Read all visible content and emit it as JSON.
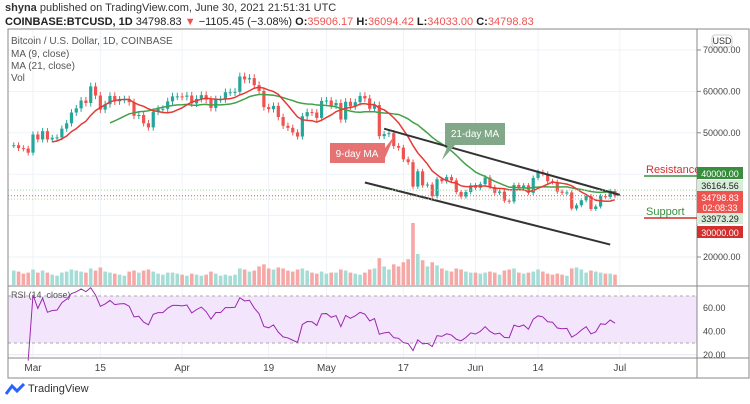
{
  "header": {
    "publisher": "shyna",
    "published_text": "published on TradingView.com, June 30, 2021 21:51:31 UTC",
    "symbol": "COINBASE:BTCUSD, 1D",
    "last": "34798.83",
    "change": "−1105.45 (−3.08%)",
    "o_label": "O:",
    "o": "35906.17",
    "h_label": "H:",
    "h": "36094.42",
    "l_label": "L:",
    "l": "34033.00",
    "c_label": "C:",
    "c": "34798.83"
  },
  "legend": {
    "title": "Bitcoin / U.S. Dollar, 1D, COINBASE",
    "ma9": "MA (9, close)",
    "ma21": "MA (21, close)",
    "vol": "Vol",
    "rsi": "RSI (14, close)"
  },
  "annotations": {
    "ma9_label": "9-day MA",
    "ma21_label": "21-day MA",
    "resistance": "Resistance",
    "support": "Support"
  },
  "price_axis": {
    "currency": "USD",
    "ticks": [
      "70000.00",
      "60000.00",
      "50000.00",
      "40000.00",
      "30000.00",
      "20000.00"
    ],
    "badge_resistance": "40000.00",
    "badge_high": "36164.56",
    "badge_last": "34798.83",
    "badge_countdown": "02:08:33",
    "badge_low": "33973.29",
    "badge_support": "30000.00"
  },
  "rsi_axis": {
    "ticks": [
      "60.00",
      "40.00",
      "20.00"
    ]
  },
  "time_axis": {
    "labels": [
      "Mar",
      "15",
      "Apr",
      "19",
      "May",
      "17",
      "Jun",
      "14",
      "Jul"
    ]
  },
  "branding": {
    "name": "TradingView"
  },
  "colors": {
    "up": "#26a69a",
    "down": "#ef5350",
    "ma9": "#e53935",
    "ma21": "#43a047",
    "rsi": "#9c27b0",
    "rsi_band": "#f3e5fc",
    "resistance_badge": "#388e3c",
    "support_badge": "#d32f2f"
  },
  "chart_data": {
    "type": "candlestick",
    "title": "Bitcoin / U.S. Dollar, 1D, COINBASE",
    "start_date": "2021-02-25",
    "end_date": "2021-06-30",
    "closes": [
      47000,
      46300,
      46200,
      45200,
      49600,
      48400,
      50400,
      48400,
      48800,
      48900,
      51000,
      52300,
      54900,
      55900,
      57800,
      57200,
      61200,
      59000,
      55600,
      56900,
      58900,
      57600,
      58000,
      58100,
      57400,
      54100,
      54300,
      52300,
      51300,
      55100,
      55800,
      55800,
      57600,
      58800,
      58800,
      58700,
      59000,
      57100,
      58200,
      59100,
      58000,
      56000,
      58100,
      58100,
      59800,
      59800,
      59900,
      63600,
      62900,
      63200,
      61500,
      60100,
      56200,
      55700,
      56500,
      53800,
      51700,
      51200,
      50100,
      49100,
      54000,
      55000,
      54900,
      53600,
      57700,
      57800,
      56600,
      57200,
      53200,
      57500,
      56400,
      57400,
      58900,
      58300,
      55800,
      56700,
      49200,
      49700,
      49900,
      46800,
      46400,
      43600,
      42900,
      37000,
      40700,
      37300,
      37500,
      34700,
      38800,
      38300,
      39300,
      38500,
      35700,
      34600,
      35700,
      37300,
      36700,
      37600,
      39200,
      36900,
      35500,
      35800,
      33600,
      33400,
      37400,
      36700,
      37300,
      35500,
      39100,
      40500,
      40100,
      38300,
      38100,
      35800,
      35500,
      35600,
      31700,
      32500,
      33700,
      34700,
      31600,
      32200,
      34700,
      34500,
      35900,
      34798.83
    ],
    "volumes": [
      14,
      13,
      11,
      12,
      15,
      12,
      14,
      12,
      10,
      9,
      12,
      13,
      15,
      14,
      13,
      12,
      16,
      14,
      17,
      13,
      12,
      11,
      10,
      9,
      13,
      14,
      12,
      14,
      15,
      13,
      11,
      10,
      12,
      12,
      11,
      10,
      9,
      11,
      10,
      9,
      10,
      13,
      11,
      9,
      10,
      9,
      10,
      16,
      15,
      13,
      14,
      18,
      20,
      16,
      15,
      17,
      16,
      14,
      13,
      15,
      16,
      14,
      12,
      11,
      13,
      11,
      12,
      12,
      15,
      14,
      12,
      11,
      10,
      12,
      15,
      16,
      26,
      18,
      15,
      20,
      18,
      22,
      25,
      60,
      30,
      24,
      18,
      22,
      19,
      16,
      14,
      13,
      16,
      15,
      13,
      12,
      12,
      11,
      12,
      13,
      12,
      10,
      14,
      15,
      16,
      12,
      11,
      12,
      13,
      15,
      13,
      11,
      10,
      11,
      10,
      9,
      16,
      17,
      15,
      12,
      14,
      13,
      12,
      11,
      11,
      10
    ],
    "price_range": [
      17000,
      75000
    ],
    "price_ticks": [
      20000,
      30000,
      40000,
      50000,
      60000,
      70000
    ],
    "rsi_range": [
      15,
      77
    ],
    "rsi_bands": [
      30,
      70
    ],
    "indicators": [
      "MA 9 close",
      "MA 21 close",
      "Volume",
      "RSI 14 close"
    ],
    "levels": {
      "resistance": 40000,
      "support": 30000,
      "high_marker": 36164.56,
      "low_marker": 33973.29,
      "last": 34798.83
    },
    "trendlines": [
      {
        "from": [
          "2021-05-13",
          51000
        ],
        "to": [
          "2021-07-01",
          35000
        ]
      },
      {
        "from": [
          "2021-05-09",
          38000
        ],
        "to": [
          "2021-06-29",
          23000
        ]
      }
    ],
    "grid": true
  }
}
